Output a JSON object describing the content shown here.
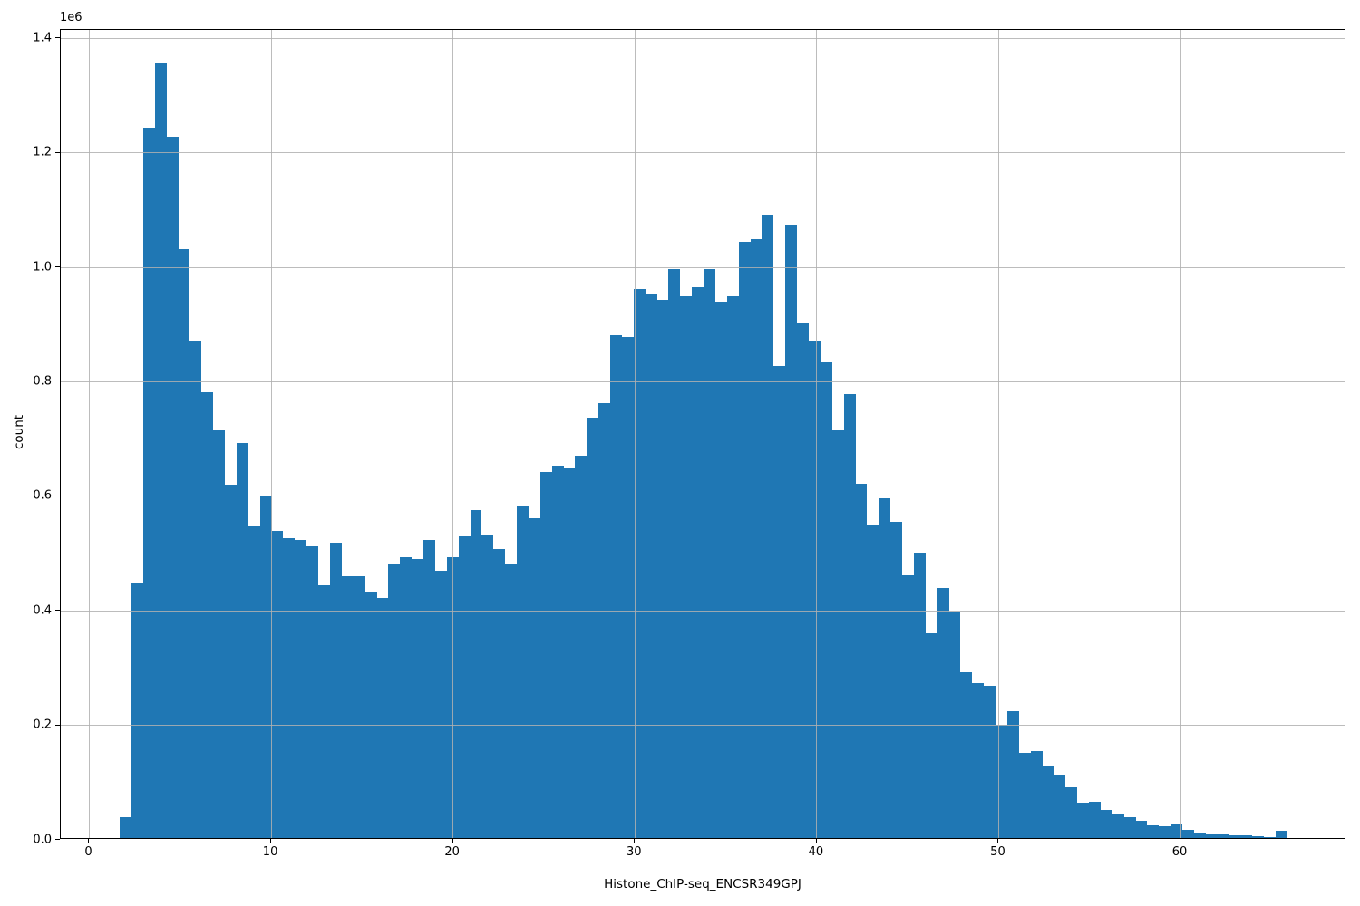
{
  "chart_data": {
    "type": "bar",
    "subtype": "histogram",
    "title": "",
    "xlabel": "Histone_ChIP-seq_ENCSR349GPJ",
    "ylabel": "count",
    "y_offset_label": "1e6",
    "bar_color": "#1f77b4",
    "grid_color": "#b0b0b0",
    "spine_color": "#000000",
    "grid_on": true,
    "legend": null,
    "xlim": [
      -1.57,
      69.12
    ],
    "ylim": [
      0,
      1414600
    ],
    "x_ticks": {
      "values": [
        0,
        10,
        20,
        30,
        40,
        50,
        60
      ],
      "labels": [
        "0",
        "10",
        "20",
        "30",
        "40",
        "50",
        "60"
      ]
    },
    "y_ticks": {
      "values": [
        0,
        200000,
        400000,
        600000,
        800000,
        1000000,
        1200000,
        1400000
      ],
      "labels": [
        "0.0",
        "0.2",
        "0.4",
        "0.6",
        "0.8",
        "1.0",
        "1.2",
        "1.4"
      ]
    },
    "bins": {
      "start": 1.68,
      "width": 0.642,
      "count": 100
    },
    "counts": [
      37000,
      445000,
      1240000,
      1353000,
      1224000,
      1028000,
      868000,
      778000,
      712000,
      617000,
      690000,
      545000,
      597000,
      537000,
      524000,
      520000,
      509000,
      441000,
      516000,
      458000,
      457000,
      430000,
      419000,
      480000,
      490000,
      487000,
      521000,
      467000,
      490000,
      527000,
      573000,
      530000,
      505000,
      478000,
      580000,
      559000,
      640000,
      651000,
      645000,
      668000,
      735000,
      760000,
      879000,
      875000,
      959000,
      951000,
      940000,
      994000,
      946000,
      962000,
      994000,
      936000,
      946000,
      1041000,
      1046000,
      1089000,
      824000,
      1071000,
      898000,
      869000,
      830000,
      712000,
      776000,
      619000,
      547000,
      593000,
      552000,
      459000,
      499000,
      357000,
      436000,
      394000,
      290000,
      271000,
      266000,
      198000,
      221000,
      149000,
      152000,
      125000,
      110000,
      88000,
      62000,
      63000,
      49000,
      42000,
      36000,
      30000,
      22000,
      21000,
      26000,
      14000,
      9000,
      7000,
      6000,
      5000,
      4000,
      3000,
      2000,
      12000
    ]
  }
}
